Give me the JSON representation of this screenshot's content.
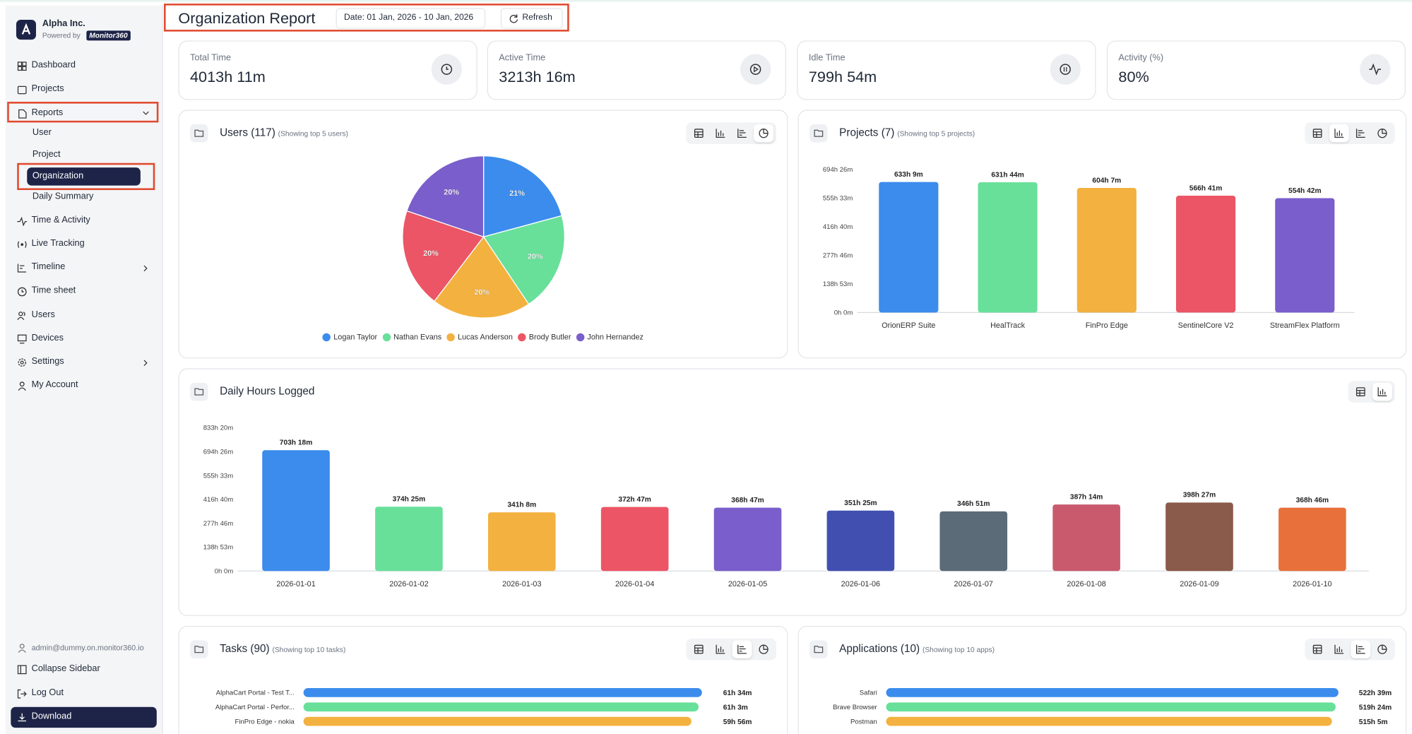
{
  "sidebar": {
    "company": "Alpha Inc.",
    "powered_by": "Powered by",
    "brand": "Monitor360",
    "nav": [
      "Dashboard",
      "Projects",
      "Reports"
    ],
    "reports_sub": [
      "User",
      "Project",
      "Organization",
      "Daily Summary"
    ],
    "nav_more": [
      "Time & Activity",
      "Live Tracking",
      "Timeline",
      "Time sheet",
      "Users",
      "Devices",
      "Settings",
      "My Account"
    ],
    "footer": {
      "email": "admin@dummy.on.monitor360.io",
      "collapse": "Collapse Sidebar",
      "logout": "Log Out",
      "download": "Download"
    }
  },
  "header": {
    "title": "Organization Report",
    "date": "Date: 01 Jan, 2026 - 10 Jan, 2026",
    "refresh": "Refresh"
  },
  "stats": [
    {
      "label": "Total Time",
      "value": "4013h 11m"
    },
    {
      "label": "Active Time",
      "value": "3213h 16m"
    },
    {
      "label": "Idle Time",
      "value": "799h 54m"
    },
    {
      "label": "Activity (%)",
      "value": "80%"
    }
  ],
  "chart_data": [
    {
      "type": "pie",
      "title": "Users (117)",
      "subtitle": "(Showing top 5 users)",
      "categories": [
        "Logan Taylor",
        "Nathan Evans",
        "Lucas Anderson",
        "Brody Butler",
        "John Hernandez"
      ],
      "values": [
        21,
        20,
        20,
        20,
        20
      ],
      "value_labels": [
        "21%",
        "20%",
        "20%",
        "20%",
        "20%"
      ],
      "colors": [
        "#3b8ced",
        "#68e09a",
        "#f3b13f",
        "#ec5565",
        "#7a5ecb"
      ]
    },
    {
      "type": "bar",
      "title": "Projects (7)",
      "subtitle": "(Showing top 5 projects)",
      "categories": [
        "OrionERP Suite",
        "HealTrack",
        "FinPro Edge",
        "SentinelCore V2",
        "StreamFlex Platform"
      ],
      "values": [
        633.15,
        631.733,
        604.117,
        566.683,
        554.7
      ],
      "value_labels": [
        "633h 9m",
        "631h 44m",
        "604h 7m",
        "566h 41m",
        "554h 42m"
      ],
      "colors": [
        "#3b8ced",
        "#68e09a",
        "#f3b13f",
        "#ec5565",
        "#7a5ecb"
      ],
      "ylim": [
        0,
        694.433
      ],
      "yticks": [
        {
          "value": 0,
          "label": "0h 0m"
        },
        {
          "value": 138.883,
          "label": "138h 53m"
        },
        {
          "value": 277.767,
          "label": "277h 46m"
        },
        {
          "value": 416.667,
          "label": "416h 40m"
        },
        {
          "value": 555.55,
          "label": "555h 33m"
        },
        {
          "value": 694.433,
          "label": "694h 26m"
        }
      ],
      "grid": false
    },
    {
      "type": "bar",
      "title": "Daily Hours Logged",
      "categories": [
        "2026-01-01",
        "2026-01-02",
        "2026-01-03",
        "2026-01-04",
        "2026-01-05",
        "2026-01-06",
        "2026-01-07",
        "2026-01-08",
        "2026-01-09",
        "2026-01-10"
      ],
      "values": [
        703.3,
        374.417,
        341.133,
        372.783,
        368.783,
        351.417,
        346.85,
        387.233,
        398.45,
        368.767
      ],
      "value_labels": [
        "703h 18m",
        "374h 25m",
        "341h 8m",
        "372h 47m",
        "368h 47m",
        "351h 25m",
        "346h 51m",
        "387h 14m",
        "398h 27m",
        "368h 46m"
      ],
      "colors": [
        "#3b8ced",
        "#68e09a",
        "#f3b13f",
        "#ec5565",
        "#7a5ecb",
        "#4150b0",
        "#5b6b78",
        "#c95a6e",
        "#8a5a4a",
        "#e8703a"
      ],
      "ylim": [
        0,
        833.333
      ],
      "yticks": [
        {
          "value": 0,
          "label": "0h 0m"
        },
        {
          "value": 138.883,
          "label": "138h 53m"
        },
        {
          "value": 277.767,
          "label": "277h 46m"
        },
        {
          "value": 416.667,
          "label": "416h 40m"
        },
        {
          "value": 555.55,
          "label": "555h 33m"
        },
        {
          "value": 694.433,
          "label": "694h 26m"
        },
        {
          "value": 833.333,
          "label": "833h 20m"
        }
      ],
      "grid": false
    },
    {
      "type": "barh",
      "title": "Tasks (90)",
      "subtitle": "(Showing top 10 tasks)",
      "categories": [
        "AlphaCart Portal - Test T...",
        "AlphaCart Portal - Perfor...",
        "FinPro Edge - nokia"
      ],
      "values": [
        61.567,
        61.05,
        59.933
      ],
      "value_labels": [
        "61h 34m",
        "61h 3m",
        "59h 56m"
      ],
      "colors": [
        "#3b8ced",
        "#68e09a",
        "#f3b13f"
      ],
      "xlim": [
        0,
        64
      ]
    },
    {
      "type": "barh",
      "title": "Applications (10)",
      "subtitle": "(Showing top 10 apps)",
      "categories": [
        "Safari",
        "Brave Browser",
        "Postman"
      ],
      "values": [
        522.65,
        519.4,
        515.083
      ],
      "value_labels": [
        "522h 39m",
        "519h 24m",
        "515h 5m"
      ],
      "colors": [
        "#3b8ced",
        "#68e09a",
        "#f3b13f"
      ],
      "xlim": [
        0,
        540
      ]
    }
  ]
}
